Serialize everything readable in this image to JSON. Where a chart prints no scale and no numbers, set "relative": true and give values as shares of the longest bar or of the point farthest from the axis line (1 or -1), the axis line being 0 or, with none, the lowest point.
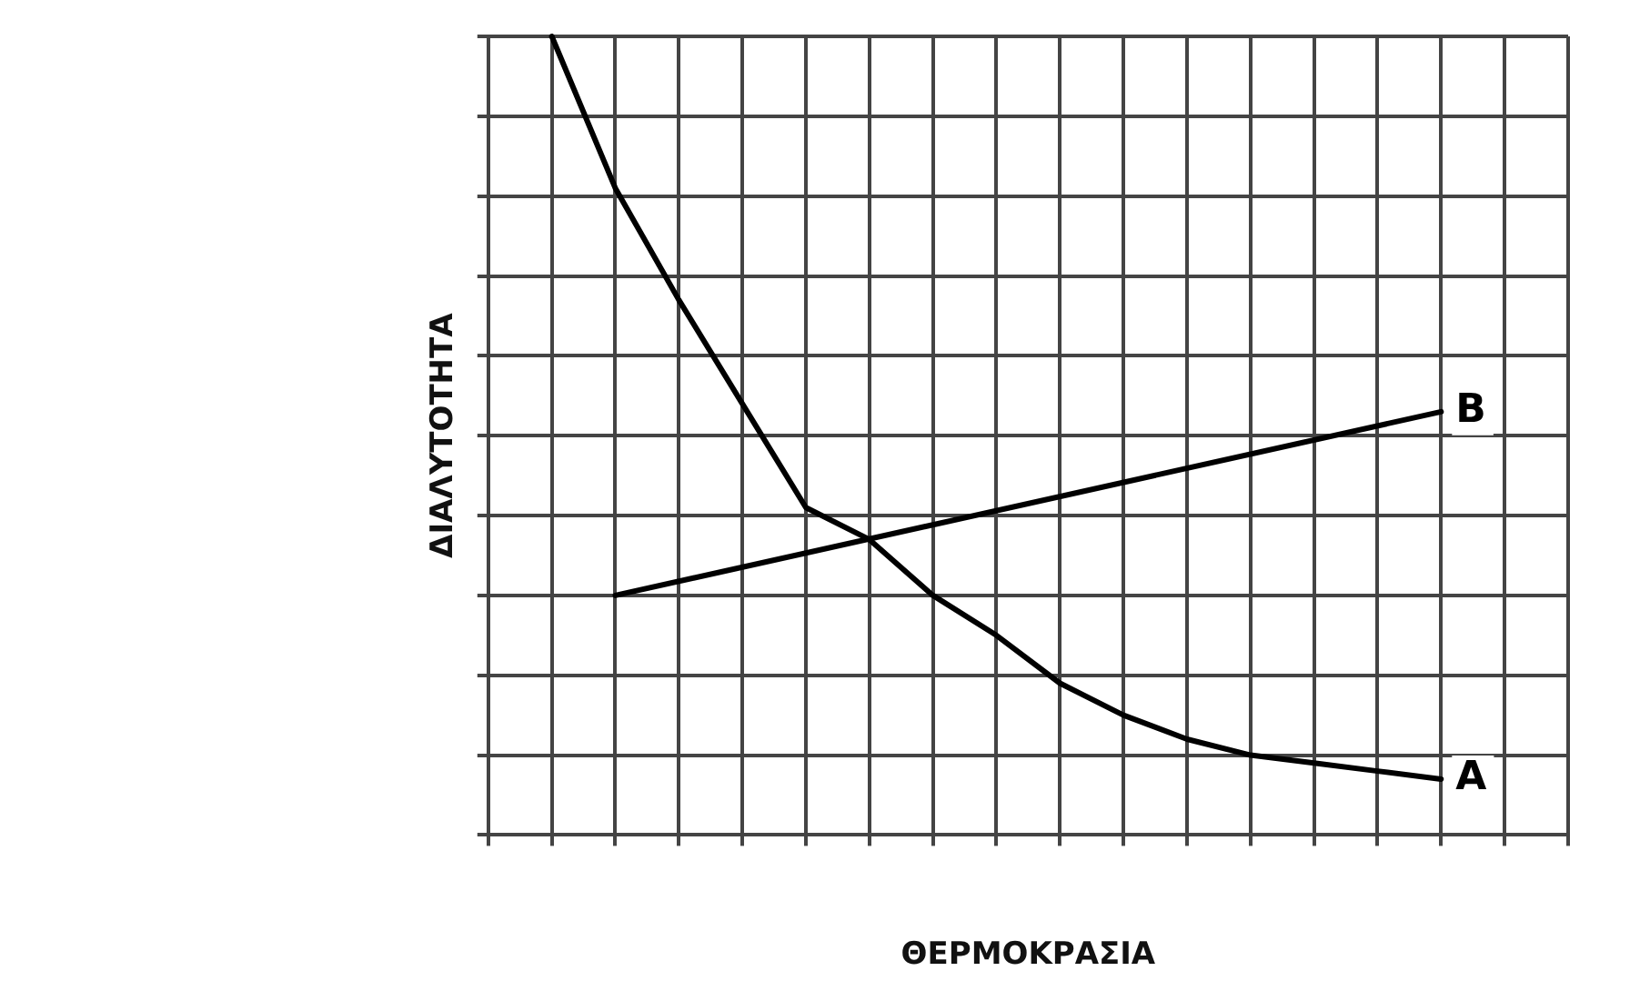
{
  "chart_data": {
    "type": "line",
    "xlabel": "ΘΕΡΜΟΚΡΑΣΙΑ",
    "ylabel": "ΔΙΑΛΥΤΟΤΗΤΑ",
    "relative": true,
    "grid": true,
    "legend": false,
    "marker": "none",
    "line_style": "solid",
    "categories": [
      null,
      null,
      null,
      null,
      null,
      null,
      null,
      null,
      null,
      null,
      null,
      null,
      null,
      null,
      null,
      null,
      null,
      null
    ],
    "series": [
      {
        "name": "A",
        "color": "#000000",
        "values": [
          null,
          1,
          0.81,
          0.67,
          0.54,
          0.41,
          0.37,
          0.3,
          0.25,
          0.19,
          0.15,
          0.12,
          0.1,
          0.09,
          0.08,
          0.07,
          null,
          null
        ]
      },
      {
        "name": "B",
        "color": "#000000",
        "values": [
          null,
          null,
          0.3,
          null,
          null,
          null,
          null,
          null,
          null,
          null,
          null,
          null,
          null,
          null,
          null,
          0.53,
          null,
          null
        ]
      }
    ]
  }
}
